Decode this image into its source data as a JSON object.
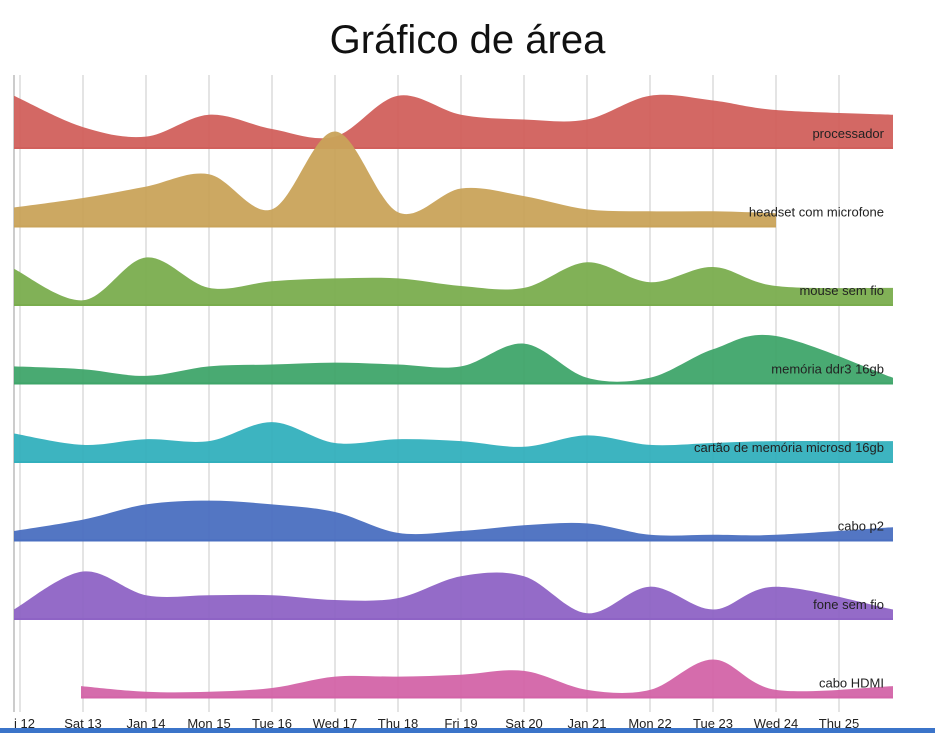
{
  "chart_data": {
    "type": "area",
    "title": "Gráfico de área",
    "xlabel": "",
    "ylabel": "",
    "x": [
      "i 12",
      "Sat 13",
      "Jan 14",
      "Mon 15",
      "Tue 16",
      "Wed 17",
      "Thu 18",
      "Fri 19",
      "Sat 20",
      "Jan 21",
      "Mon 22",
      "Tue 23",
      "Wed 24",
      "Thu 25"
    ],
    "grid": true,
    "series": [
      {
        "name": "processador",
        "color": "#d1605c",
        "values": [
          0.55,
          0.22,
          0.12,
          0.35,
          0.2,
          0.12,
          0.55,
          0.35,
          0.3,
          0.3,
          0.55,
          0.5,
          0.4,
          0.35
        ]
      },
      {
        "name": "headset com microfone",
        "color": "#c9a35a",
        "values": [
          0.2,
          0.3,
          0.42,
          0.55,
          0.18,
          1.0,
          0.15,
          0.4,
          0.32,
          0.18,
          0.16,
          0.16,
          0.14,
          null
        ]
      },
      {
        "name": "mouse sem fio",
        "color": "#7aad4e",
        "values": [
          0.38,
          0.05,
          0.5,
          0.18,
          0.25,
          0.28,
          0.28,
          0.2,
          0.18,
          0.45,
          0.24,
          0.4,
          0.2,
          0.18
        ]
      },
      {
        "name": "memória ddr3 16gb",
        "color": "#3fa56a",
        "values": [
          0.18,
          0.15,
          0.08,
          0.18,
          0.2,
          0.22,
          0.2,
          0.18,
          0.42,
          0.06,
          0.06,
          0.36,
          0.5,
          0.06
        ]
      },
      {
        "name": "cartão de memória microsd 16gb",
        "color": "#33b0bd",
        "values": [
          0.3,
          0.18,
          0.24,
          0.22,
          0.42,
          0.2,
          0.24,
          0.22,
          0.16,
          0.28,
          0.18,
          0.2,
          0.22,
          0.22
        ]
      },
      {
        "name": "cabo p2",
        "color": "#4a6fc0",
        "values": [
          0.1,
          0.22,
          0.38,
          0.42,
          0.38,
          0.3,
          0.08,
          0.1,
          0.16,
          0.18,
          0.06,
          0.06,
          0.06,
          0.14
        ]
      },
      {
        "name": "fone sem fio",
        "color": "#8e63c5",
        "values": [
          0.1,
          0.5,
          0.25,
          0.25,
          0.25,
          0.2,
          0.22,
          0.45,
          0.45,
          0.06,
          0.34,
          0.1,
          0.34,
          0.1
        ]
      },
      {
        "name": "cabo HDMI",
        "color": "#d364a8",
        "values": [
          null,
          0.12,
          0.06,
          0.06,
          0.1,
          0.22,
          0.22,
          0.24,
          0.28,
          0.08,
          0.08,
          0.4,
          0.08,
          0.12
        ]
      }
    ]
  }
}
